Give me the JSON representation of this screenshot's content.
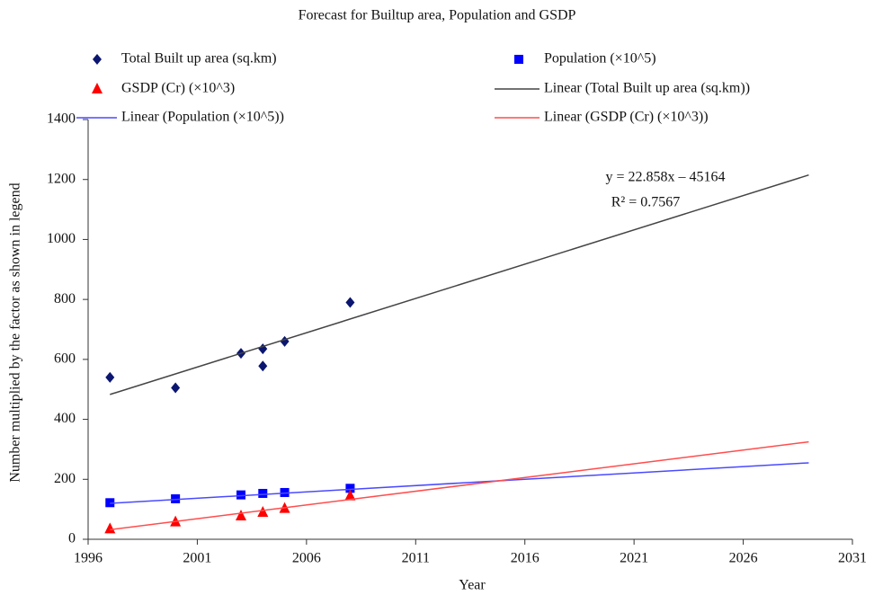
{
  "chart_data": {
    "type": "scatter",
    "title": "Forecast for Builtup area, Population and GSDP",
    "x_label": "Year",
    "y_label": "Number multiplied by the factor as shown in legend",
    "xlim": [
      1996,
      2031
    ],
    "xticks": [
      1996,
      2001,
      2006,
      2011,
      2016,
      2021,
      2026,
      2031
    ],
    "ylim": [
      0,
      1400
    ],
    "yticks": [
      0,
      200,
      400,
      600,
      800,
      1000,
      1200,
      1400
    ],
    "grid": false,
    "annotations": [
      "y = 22.858x – 45164",
      "R² = 0.7567"
    ],
    "series": [
      {
        "name": "Total Built up area (sq.km)",
        "type": "scatter",
        "marker": "diamond",
        "color": "#0b1670",
        "x": [
          1997,
          2000,
          2003,
          2004,
          2004,
          2005,
          2008
        ],
        "values": [
          540,
          505,
          620,
          635,
          578,
          660,
          790
        ]
      },
      {
        "name": "Population (×10^5)",
        "type": "scatter",
        "marker": "square",
        "color": "#0000ff",
        "x": [
          1997,
          2000,
          2003,
          2004,
          2005,
          2008
        ],
        "values": [
          122,
          135,
          148,
          153,
          156,
          170
        ]
      },
      {
        "name": "GSDP (Cr) (×10^3)",
        "type": "scatter",
        "marker": "triangle",
        "color": "#ff0000",
        "x": [
          1997,
          2000,
          2003,
          2004,
          2005,
          2008
        ],
        "values": [
          35,
          58,
          78,
          90,
          103,
          145
        ]
      },
      {
        "name": "Linear (Total Built up area (sq.km))",
        "type": "line",
        "color": "#444444",
        "x": [
          1997,
          2029
        ],
        "values": [
          483,
          1215
        ]
      },
      {
        "name": "Linear (Population (×10^5))",
        "type": "line",
        "color": "#4a4aff",
        "x": [
          1997,
          2029
        ],
        "values": [
          120,
          255
        ]
      },
      {
        "name": "Linear (GSDP (Cr) (×10^3))",
        "type": "line",
        "color": "#ff4d4d",
        "x": [
          1997,
          2029
        ],
        "values": [
          32,
          325
        ]
      }
    ]
  }
}
